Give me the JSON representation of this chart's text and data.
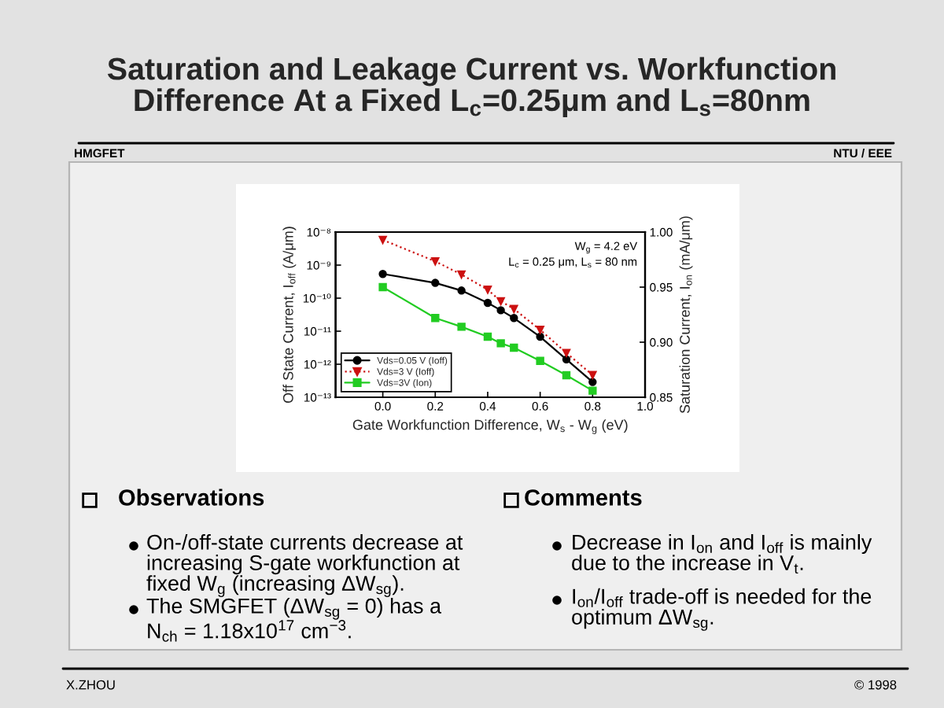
{
  "chart_data": {
    "type": "line",
    "title": "Saturation and Leakage Current vs. Workfunction Difference At a Fixed L$_{c}$=0.25μm and L$_{s}$=80nm",
    "xlabel": "Gate Workfunction Difference, W$_{s}$ - W$_{g}$ (eV)",
    "ylabel": "Off State Current, I$_{off}$ (A/μm)",
    "y2label": "Saturation Current, I$_{on}$ (mA/μm)",
    "x": [
      0,
      0.2,
      0.3,
      0.4,
      0.45,
      0.5,
      0.6,
      0.7,
      0.8
    ],
    "series": [
      {
        "name": "Vds=0.05 V (Ioff)",
        "color": "#000000",
        "marker": "circle",
        "line_style": "solid",
        "values": [
          5.4e-10,
          2.9e-10,
          1.7e-10,
          7.2e-11,
          4.3e-11,
          2.5e-11,
          6.8e-12,
          1.4e-12,
          2.9e-13
        ]
      },
      {
        "name": "Vds=3 V (Ioff)",
        "color": "#cc1111",
        "marker": "triangle",
        "line_style": "dotted",
        "values": [
          5.8e-09,
          1.3e-09,
          5.2e-10,
          1.8e-10,
          8.1e-11,
          4.7e-11,
          1.1e-11,
          2.2e-12,
          4.7e-13
        ]
      },
      {
        "name": "Vds=3V (Ion)",
        "color": "#22cc22",
        "marker": "square",
        "line_style": "solid",
        "axis": "y2",
        "values": [
          0.95,
          0.922,
          0.914,
          0.905,
          0.899,
          0.895,
          0.883,
          0.87,
          0.856
        ]
      }
    ],
    "xlim": [
      -0.18,
      1.0
    ],
    "xticks": [
      {
        "value": 0,
        "label": "0.0"
      },
      0.2,
      0.4,
      0.6,
      0.8,
      {
        "value": 1,
        "label": "1.0"
      }
    ],
    "ylim": [
      1e-13,
      1e-08
    ],
    "yticks": [
      {
        "value": 1e-13,
        "label": "10⁻¹³"
      },
      {
        "value": 1e-12,
        "label": "10⁻¹²"
      },
      {
        "value": 1e-11,
        "label": "10⁻¹¹"
      },
      {
        "value": 1e-10,
        "label": "10⁻¹⁰"
      },
      {
        "value": 1e-09,
        "label": "10⁻⁹"
      },
      {
        "value": 1e-08,
        "label": "10⁻⁸"
      }
    ],
    "y2lim": [
      0.85,
      1.0
    ],
    "y2ticks": [
      0.85,
      {
        "value": 0.9,
        "label": "0.90"
      },
      0.95,
      {
        "value": 1,
        "label": "1.00"
      }
    ],
    "log": "y",
    "legend": "bottom left",
    "annotations": [
      "HMGFET",
      "NTU / EEE",
      "W$_{g}$ = 4.2 eV",
      "L$_{c}$ = 0.25 μm, L$_{s}$ = 80 nm",
      "Observations",
      "On-/off-state currents decrease at increasing S-gate workfunction at fixed W$_{g}$ (increasing ΔW$_{sg}$).",
      "The SMGFET (ΔW$_{sg}$ = 0) has a N$_{ch}$ = 1.18x10$^{17}$ cm$^{−3}$.",
      "Comments",
      "Decrease in I$_{on}$ and I$_{off}$ is mainly due to the increase in V$_{t}$.",
      "I$_{on}$/I$_{off}$ trade-off is needed for the optimum ΔW$_{sg}$.",
      "X.ZHOU",
      "© 1998"
    ]
  }
}
